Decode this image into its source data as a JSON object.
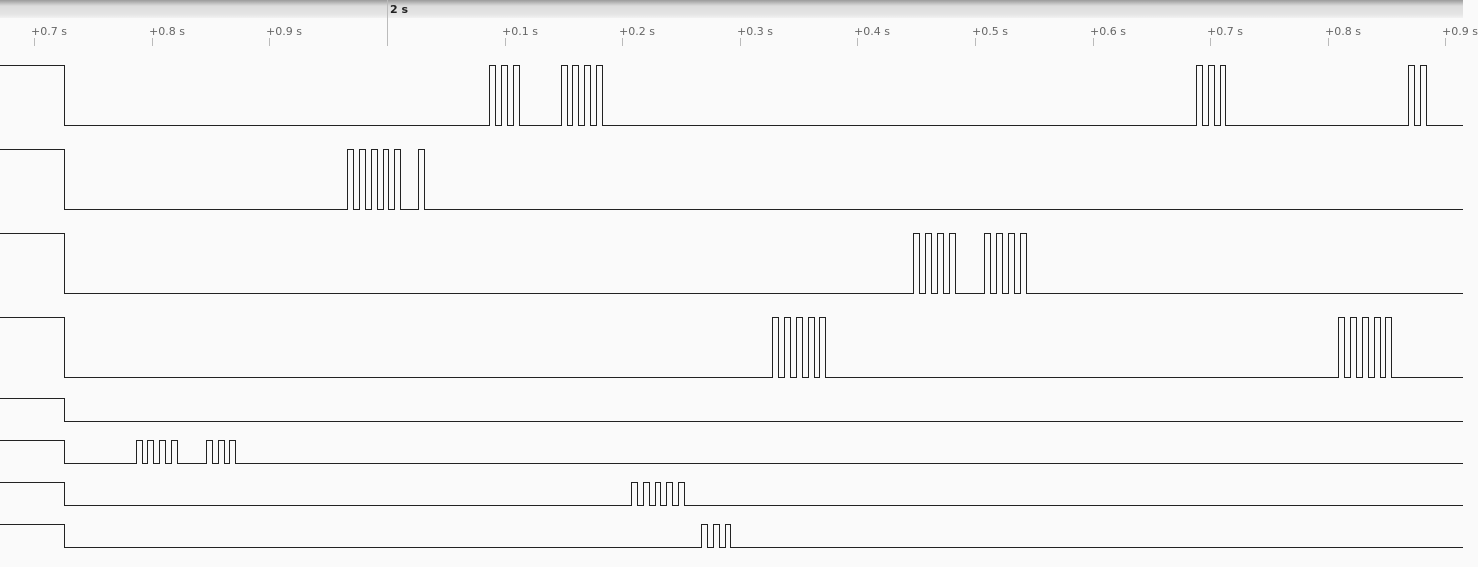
{
  "ruler": {
    "major": {
      "label": "2 s",
      "time": 2.0
    },
    "ticks": [
      {
        "label": "+0.7 s",
        "time": 1.7
      },
      {
        "label": "+0.8 s",
        "time": 1.8
      },
      {
        "label": "+0.9 s",
        "time": 1.9
      },
      {
        "label": "+0.1 s",
        "time": 2.1
      },
      {
        "label": "+0.2 s",
        "time": 2.2
      },
      {
        "label": "+0.3 s",
        "time": 2.3
      },
      {
        "label": "+0.4 s",
        "time": 2.4
      },
      {
        "label": "+0.5 s",
        "time": 2.5
      },
      {
        "label": "+0.6 s",
        "time": 2.6
      },
      {
        "label": "+0.7 s",
        "time": 2.7
      },
      {
        "label": "+0.8 s",
        "time": 2.8
      },
      {
        "label": "+0.9 s",
        "time": 2.9
      }
    ]
  },
  "signal": {
    "initial_fall_time": 1.7253,
    "pulse_period": 0.01,
    "pulse_width": 0.005,
    "trace_color": "#222222"
  },
  "channels": [
    {
      "pulses": [
        {
          "start": 2.087,
          "count": 3
        },
        {
          "start": 2.1477,
          "count": 4
        },
        {
          "start": 2.688,
          "count": 3
        },
        {
          "start": 2.8685,
          "count": 2
        }
      ]
    },
    {
      "pulses": [
        {
          "start": 1.9662,
          "count": 5
        },
        {
          "start": 2.0266,
          "count": 1
        }
      ]
    },
    {
      "pulses": [
        {
          "start": 2.4476,
          "count": 4
        },
        {
          "start": 2.508,
          "count": 4
        }
      ]
    },
    {
      "pulses": [
        {
          "start": 2.3277,
          "count": 5
        },
        {
          "start": 2.809,
          "count": 5
        }
      ]
    },
    {
      "pulses": []
    },
    {
      "pulses": [
        {
          "start": 1.7863,
          "count": 4
        },
        {
          "start": 1.846,
          "count": 3
        }
      ]
    },
    {
      "pulses": [
        {
          "start": 2.2075,
          "count": 5
        }
      ]
    },
    {
      "pulses": [
        {
          "start": 2.267,
          "count": 3
        }
      ]
    }
  ]
}
